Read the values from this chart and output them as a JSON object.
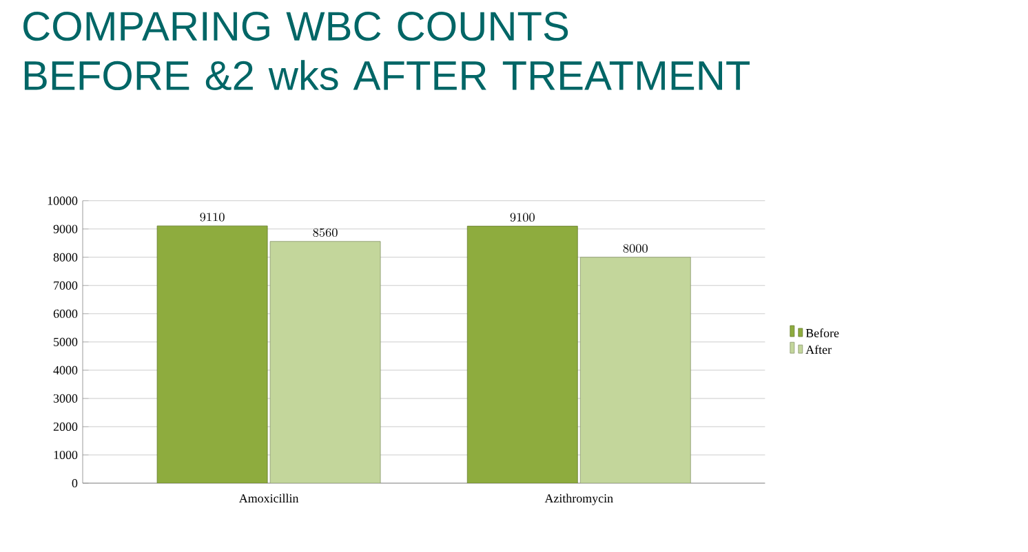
{
  "chart_data": {
    "type": "bar",
    "title": "COMPARING WBC COUNTS\nBEFORE &2 wks AFTER TREATMENT",
    "categories": [
      "Amoxicillin",
      "Azithromycin"
    ],
    "series": [
      {
        "name": "Before",
        "color": "#8eac3e",
        "values": [
          9110,
          9100
        ]
      },
      {
        "name": "After",
        "color": "#c3d69b",
        "values": [
          8560,
          8000
        ]
      }
    ],
    "ylim": [
      0,
      10000
    ],
    "yticks": [
      0,
      1000,
      2000,
      3000,
      4000,
      5000,
      6000,
      7000,
      8000,
      9000,
      10000
    ],
    "grid": "y",
    "legend": "right",
    "data_labels": true
  }
}
